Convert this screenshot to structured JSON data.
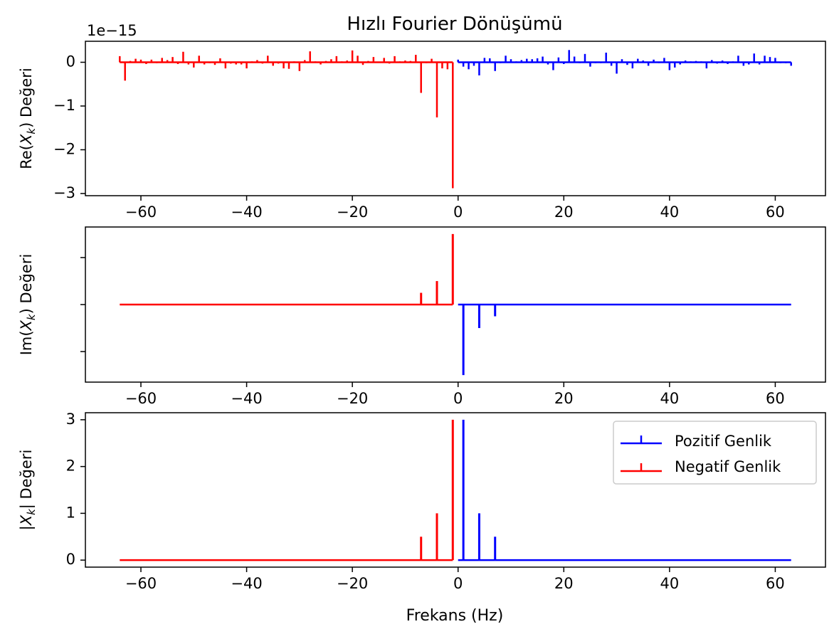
{
  "figure": {
    "title": "Hızlı Fourier Dönüşümü",
    "xlabel": "Frekans (Hz)"
  },
  "legend": {
    "placement": "upper-right",
    "entries": [
      {
        "label": "Pozitif Genlik",
        "color": "#0000ff"
      },
      {
        "label": "Negatif Genlik",
        "color": "#ff0000"
      }
    ]
  },
  "colors": {
    "positive": "#0000ff",
    "negative": "#ff0000"
  },
  "chart_data": [
    {
      "type": "stem",
      "ylabel": "Re(X_k) Değeri",
      "offset_label": "1e−15",
      "xlim": [
        -70.5,
        69.5
      ],
      "ylim": [
        -3.05,
        0.48
      ],
      "xticks": [
        -60,
        -40,
        -20,
        0,
        20,
        40,
        60
      ],
      "xtick_labels": [
        "−60",
        "−40",
        "−20",
        "0",
        "20",
        "40",
        "60"
      ],
      "yticks": [
        -3,
        -2,
        -1,
        0
      ],
      "ytick_labels": [
        "−3",
        "−2",
        "−1",
        "0"
      ],
      "series": [
        {
          "name": "Negatif Genlik",
          "color": "#ff0000",
          "x_start": -64,
          "x_end": -1,
          "values": [
            0.14,
            -0.42,
            0.03,
            0.08,
            0.06,
            -0.04,
            0.06,
            -0.02,
            0.1,
            0.05,
            0.12,
            -0.04,
            0.24,
            -0.05,
            -0.12,
            0.15,
            -0.05,
            -0.02,
            -0.06,
            0.09,
            -0.14,
            -0.03,
            -0.05,
            -0.05,
            -0.14,
            0.02,
            0.05,
            -0.03,
            0.15,
            -0.08,
            -0.03,
            -0.14,
            -0.15,
            0.02,
            -0.2,
            0.05,
            0.25,
            0.02,
            -0.05,
            0.03,
            0.07,
            0.14,
            0.02,
            0.04,
            0.27,
            0.15,
            -0.06,
            0.03,
            0.12,
            0.01,
            0.1,
            -0.03,
            0.14,
            0.02,
            0.04,
            0.03,
            0.17,
            -0.7,
            -0.02,
            0.08,
            -1.26,
            -0.14,
            -0.16,
            -2.88
          ]
        },
        {
          "name": "Pozitif Genlik",
          "color": "#0000ff",
          "x_start": 0,
          "x_end": 63,
          "values": [
            0.06,
            -0.1,
            -0.16,
            -0.08,
            -0.3,
            0.1,
            0.09,
            -0.2,
            -0.02,
            0.15,
            0.07,
            0.02,
            0.05,
            0.08,
            0.07,
            0.09,
            0.13,
            -0.05,
            -0.18,
            0.11,
            -0.04,
            0.28,
            0.13,
            -0.02,
            0.19,
            -0.1,
            -0.02,
            -0.02,
            0.22,
            -0.08,
            -0.26,
            0.07,
            -0.06,
            -0.14,
            0.08,
            0.04,
            -0.08,
            0.06,
            -0.02,
            0.1,
            -0.18,
            -0.12,
            -0.05,
            0.04,
            0.02,
            0.03,
            0.02,
            -0.14,
            0.05,
            -0.03,
            0.04,
            -0.04,
            0.02,
            0.15,
            -0.08,
            -0.05,
            0.2,
            -0.05,
            0.15,
            0.12,
            0.1,
            -0.02,
            -0.02,
            -0.08
          ]
        }
      ]
    },
    {
      "type": "stem",
      "ylabel": "Im(X_k) Değeri",
      "xlim": [
        -70.5,
        69.5
      ],
      "ylim": [
        -1.65,
        1.65
      ],
      "xticks": [
        -60,
        -40,
        -20,
        0,
        20,
        40,
        60
      ],
      "xtick_labels": [
        "−60",
        "−40",
        "−20",
        "0",
        "20",
        "40",
        "60"
      ],
      "yticks": [
        -1,
        0,
        1
      ],
      "ytick_labels": [
        "",
        "",
        ""
      ],
      "series": [
        {
          "name": "Negatif Genlik",
          "color": "#ff0000",
          "points": [
            [
              -7,
              0.25
            ],
            [
              -4,
              0.5
            ],
            [
              -1,
              1.5
            ]
          ],
          "baseline": [
            -64,
            -1
          ]
        },
        {
          "name": "Pozitif Genlik",
          "color": "#0000ff",
          "points": [
            [
              1,
              -1.5
            ],
            [
              4,
              -0.5
            ],
            [
              7,
              -0.25
            ]
          ],
          "baseline": [
            0,
            63
          ]
        }
      ]
    },
    {
      "type": "stem",
      "ylabel": "|X_k| Değeri",
      "xlim": [
        -70.5,
        69.5
      ],
      "ylim": [
        -0.15,
        3.15
      ],
      "xticks": [
        -60,
        -40,
        -20,
        0,
        20,
        40,
        60
      ],
      "xtick_labels": [
        "−60",
        "−40",
        "−20",
        "0",
        "20",
        "40",
        "60"
      ],
      "yticks": [
        0,
        1,
        2,
        3
      ],
      "ytick_labels": [
        "0",
        "1",
        "2",
        "3"
      ],
      "series": [
        {
          "name": "Negatif Genlik",
          "color": "#ff0000",
          "points": [
            [
              -7,
              0.5
            ],
            [
              -4,
              1.0
            ],
            [
              -1,
              3.0
            ]
          ],
          "baseline": [
            -64,
            -1
          ]
        },
        {
          "name": "Pozitif Genlik",
          "color": "#0000ff",
          "points": [
            [
              1,
              3.0
            ],
            [
              4,
              1.0
            ],
            [
              7,
              0.5
            ]
          ],
          "baseline": [
            0,
            63
          ]
        }
      ]
    }
  ]
}
